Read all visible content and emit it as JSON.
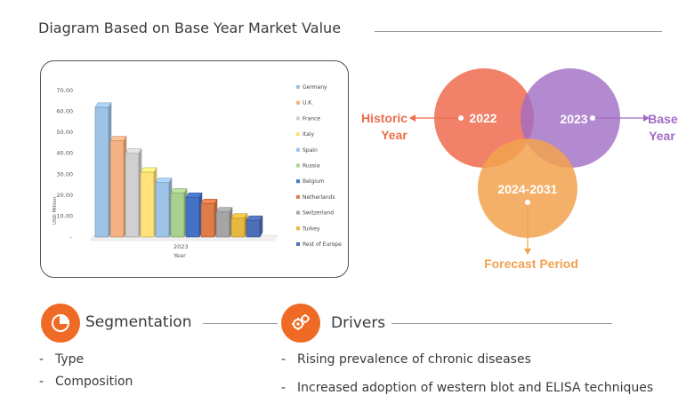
{
  "page": {
    "title": "Diagram Based on Base Year Market Value"
  },
  "chart_data": {
    "type": "bar",
    "categories": [
      "Germany",
      "U.K.",
      "France",
      "Italy",
      "Spain",
      "Russia",
      "Belgium",
      "Netherlands",
      "Switzerland",
      "Turkey",
      "Rest of Europe"
    ],
    "series": [
      {
        "values": [
          62,
          46,
          40,
          31,
          26,
          21,
          19,
          16,
          12,
          9,
          8
        ]
      }
    ],
    "colors": [
      "#9dc3e6",
      "#f4b183",
      "#d0d0d0",
      "#ffe27a",
      "#9dc3e6",
      "#a9d18e",
      "#4472c4",
      "#e07b4a",
      "#a5a5a5",
      "#e6b93e",
      "#4d6fb8"
    ],
    "x_tick": "2023",
    "xlabel": "Year",
    "ylabel": "USD Million",
    "yticks": [
      "70.00",
      "60.00",
      "50.00",
      "40.00",
      "30.00",
      "20.00",
      "10.00",
      "-"
    ],
    "ylim": [
      0,
      70
    ],
    "legend_position": "right"
  },
  "venn": {
    "historic_year": "2022",
    "base_year": "2023",
    "forecast_period": "2024-2031",
    "historic_label_line1": "Historic",
    "historic_label_line2": "Year",
    "base_label_line1": "Base",
    "base_label_line2": "Year",
    "forecast_label": "Forecast Period",
    "colors": {
      "historic": "#ee6b4d",
      "base": "#a06bc4",
      "forecast": "#f2a24f"
    }
  },
  "segmentation": {
    "title": "Segmentation",
    "icon": "pie-chart-icon",
    "items": [
      "Type",
      "Composition"
    ]
  },
  "drivers": {
    "title": "Drivers",
    "icon": "gears-icon",
    "items": [
      "Rising prevalence of chronic diseases",
      "Increased adoption of western blot and ELISA techniques"
    ]
  }
}
